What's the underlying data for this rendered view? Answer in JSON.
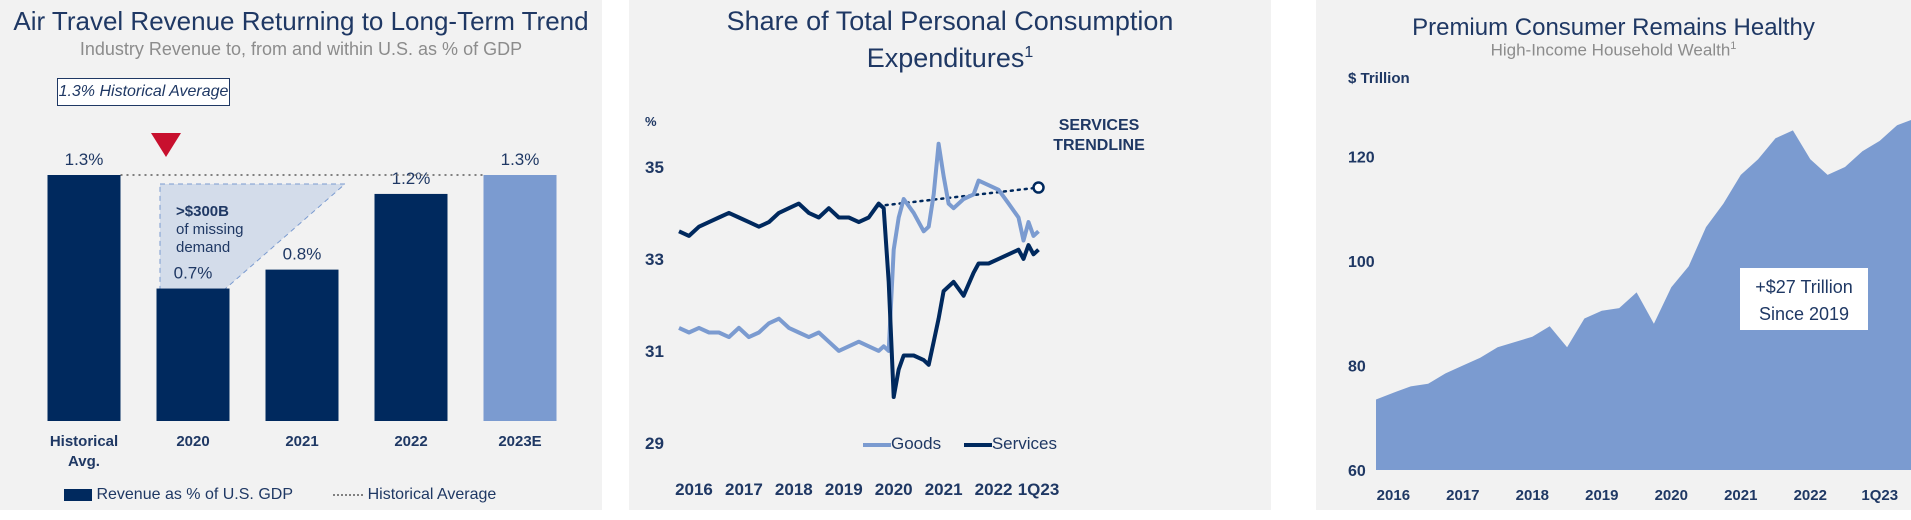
{
  "colors": {
    "navy": "#00295e",
    "lightblue": "#7b9bd0",
    "panel": "#f2f2f2",
    "red": "#c8102e",
    "missing": "#d3dcea"
  },
  "panel1": {
    "title": "Air Travel Revenue Returning to Long-Term Trend",
    "subtitle": "Industry Revenue to, from and within U.S. as % of GDP",
    "callout": "1.3% Historical Average",
    "missing_line1": ">$300B",
    "missing_line2": "of missing",
    "missing_line3": "demand",
    "legend_bar": "Revenue as % of U.S. GDP",
    "legend_line": "Historical Average"
  },
  "panel2": {
    "title_line1": "Share of Total Personal Consumption",
    "title_line2": "Expenditures",
    "title_sup": "1",
    "unit": "%",
    "trend_label_1": "SERVICES",
    "trend_label_2": "TRENDLINE",
    "legend_goods": "Goods",
    "legend_services": "Services"
  },
  "panel3": {
    "title": "Premium Consumer Remains Healthy",
    "subtitle": "High-Income Household Wealth",
    "subtitle_sup": "1",
    "unit": "$ Trillion",
    "callout_line1": "+$27 Trillion",
    "callout_line2": "Since 2019"
  },
  "chart_data": [
    {
      "type": "bar",
      "title": "Air Travel Revenue Returning to Long-Term Trend",
      "subtitle": "Industry Revenue to, from and within U.S. as % of GDP",
      "categories": [
        "Historical Avg.",
        "2020",
        "2021",
        "2022",
        "2023E"
      ],
      "category_lines": [
        [
          "Historical",
          "Avg."
        ],
        [
          "2020"
        ],
        [
          "2021"
        ],
        [
          "2022"
        ],
        [
          "2023E"
        ]
      ],
      "values": [
        1.3,
        0.7,
        0.8,
        1.2,
        1.3
      ],
      "labels": [
        "1.3%",
        "0.7%",
        "0.8%",
        "1.2%",
        "1.3%"
      ],
      "bar_colors": [
        "#00295e",
        "#00295e",
        "#00295e",
        "#00295e",
        "#7b9bd0"
      ],
      "reference_line": {
        "name": "Historical Average",
        "value": 1.3
      },
      "series": [
        {
          "name": "Revenue as % of U.S. GDP",
          "values": [
            1.3,
            0.7,
            0.8,
            1.2,
            1.3
          ]
        }
      ],
      "ylim": [
        0,
        1.3
      ]
    },
    {
      "type": "line",
      "title": "Share of Total Personal Consumption Expenditures",
      "ylabel": "%",
      "ylim": [
        29,
        35.8
      ],
      "yticks": [
        29,
        31,
        33,
        35
      ],
      "xlim": [
        2016,
        2023.35
      ],
      "xtick_labels": [
        "2016",
        "2017",
        "2018",
        "2019",
        "2020",
        "2021",
        "2022",
        "1Q23"
      ],
      "xtick_positions": [
        2016.3,
        2017.3,
        2018.3,
        2019.3,
        2020.3,
        2021.3,
        2022.3,
        2023.2
      ],
      "series": [
        {
          "name": "Goods",
          "color": "#7b9bd0",
          "x": [
            2016.0,
            2016.2,
            2016.4,
            2016.6,
            2016.8,
            2017.0,
            2017.2,
            2017.4,
            2017.6,
            2017.8,
            2018.0,
            2018.2,
            2018.4,
            2018.6,
            2018.8,
            2019.0,
            2019.2,
            2019.4,
            2019.6,
            2019.8,
            2020.0,
            2020.1,
            2020.2,
            2020.3,
            2020.4,
            2020.5,
            2020.7,
            2020.9,
            2021.0,
            2021.1,
            2021.2,
            2021.3,
            2021.4,
            2021.5,
            2021.7,
            2021.9,
            2022.0,
            2022.2,
            2022.4,
            2022.6,
            2022.8,
            2022.9,
            2023.0,
            2023.1,
            2023.2
          ],
          "y": [
            31.5,
            31.4,
            31.5,
            31.4,
            31.4,
            31.3,
            31.5,
            31.3,
            31.4,
            31.6,
            31.7,
            31.5,
            31.4,
            31.3,
            31.4,
            31.2,
            31.0,
            31.1,
            31.2,
            31.1,
            31.0,
            31.1,
            31.0,
            33.2,
            33.9,
            34.3,
            34.0,
            33.6,
            33.7,
            34.4,
            35.5,
            34.8,
            34.2,
            34.1,
            34.3,
            34.4,
            34.7,
            34.6,
            34.5,
            34.2,
            33.9,
            33.4,
            33.8,
            33.5,
            33.6
          ]
        },
        {
          "name": "Services",
          "color": "#00295e",
          "x": [
            2016.0,
            2016.2,
            2016.4,
            2016.6,
            2016.8,
            2017.0,
            2017.2,
            2017.4,
            2017.6,
            2017.8,
            2018.0,
            2018.2,
            2018.4,
            2018.6,
            2018.8,
            2019.0,
            2019.2,
            2019.4,
            2019.6,
            2019.8,
            2020.0,
            2020.1,
            2020.2,
            2020.3,
            2020.4,
            2020.5,
            2020.7,
            2020.9,
            2021.0,
            2021.1,
            2021.2,
            2021.3,
            2021.4,
            2021.5,
            2021.7,
            2021.9,
            2022.0,
            2022.2,
            2022.4,
            2022.6,
            2022.8,
            2022.9,
            2023.0,
            2023.1,
            2023.2
          ],
          "y": [
            33.6,
            33.5,
            33.7,
            33.8,
            33.9,
            34.0,
            33.9,
            33.8,
            33.7,
            33.8,
            34.0,
            34.1,
            34.2,
            34.0,
            33.9,
            34.1,
            33.9,
            33.9,
            33.8,
            33.9,
            34.2,
            34.1,
            32.5,
            30.0,
            30.6,
            30.9,
            30.9,
            30.8,
            30.7,
            31.2,
            31.7,
            32.3,
            32.4,
            32.5,
            32.2,
            32.7,
            32.9,
            32.9,
            33.0,
            33.1,
            33.2,
            33.0,
            33.3,
            33.1,
            33.2
          ]
        }
      ],
      "trendline": {
        "name": "SERVICES TRENDLINE",
        "x": [
          2020.0,
          2023.2
        ],
        "y": [
          34.15,
          34.55
        ]
      }
    },
    {
      "type": "area",
      "title": "Premium Consumer Remains Healthy",
      "subtitle": "High-Income Household Wealth",
      "ylabel": "$ Trillion",
      "ylim": [
        60,
        127
      ],
      "yticks": [
        60,
        80,
        100,
        120
      ],
      "xlim": [
        2015.75,
        2023.45
      ],
      "xtick_labels": [
        "2016",
        "2017",
        "2018",
        "2019",
        "2020",
        "2021",
        "2022",
        "1Q23"
      ],
      "xtick_positions": [
        2016,
        2017,
        2018,
        2019,
        2020,
        2021,
        2022,
        2023
      ],
      "series": [
        {
          "name": "High-Income Household Wealth",
          "color": "#7b9bd0",
          "x": [
            2015.75,
            2016.0,
            2016.25,
            2016.5,
            2016.75,
            2017.0,
            2017.25,
            2017.5,
            2017.75,
            2018.0,
            2018.25,
            2018.5,
            2018.75,
            2019.0,
            2019.25,
            2019.5,
            2019.75,
            2020.0,
            2020.25,
            2020.5,
            2020.75,
            2021.0,
            2021.25,
            2021.5,
            2021.75,
            2022.0,
            2022.25,
            2022.5,
            2022.75,
            2023.0,
            2023.25,
            2023.45
          ],
          "y": [
            73.5,
            74.8,
            76.0,
            76.5,
            78.5,
            80.0,
            81.5,
            83.5,
            84.5,
            85.5,
            87.5,
            83.5,
            89.0,
            90.5,
            91.0,
            94.0,
            88.0,
            95.0,
            99.0,
            106.5,
            111.0,
            116.5,
            119.5,
            123.5,
            125.0,
            119.5,
            116.5,
            118.0,
            121.0,
            123.0,
            126.0,
            127.0
          ]
        }
      ]
    }
  ]
}
